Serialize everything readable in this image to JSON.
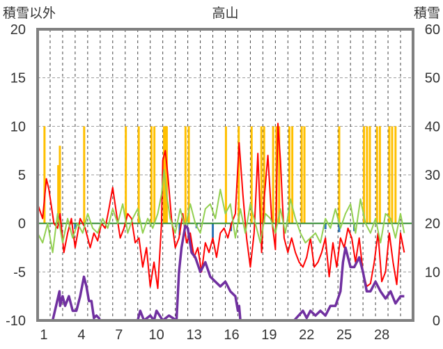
{
  "chart_data": {
    "type": "line",
    "title": "高山",
    "ylabel": "積雪以外",
    "y2label": "積雪",
    "ylim": [
      -10,
      20
    ],
    "y2lim": [
      0,
      60
    ],
    "yticks": [
      -10,
      -5,
      0,
      5,
      10,
      15,
      20
    ],
    "y2ticks": [
      0,
      10,
      20,
      30,
      40,
      50,
      60
    ],
    "xlim": [
      0,
      30
    ],
    "xticks": [
      1,
      4,
      7,
      10,
      13,
      16,
      19,
      22,
      25,
      28
    ],
    "grid": true,
    "colors": {
      "precip": "#ffc000",
      "negative_bar": "#2e75b6",
      "temperature": "#ff0000",
      "wind": "#92d050",
      "snow": "#7030a0",
      "grid": "#999999",
      "frame": "#808080"
    },
    "series": [
      {
        "axis": "left",
        "kind": "bar",
        "x": [
          0.55,
          1.65,
          1.78,
          3.72,
          7.05,
          8.08,
          9.1,
          9.33,
          10.1,
          10.2,
          10.32,
          11.82,
          12.08,
          15.05,
          16.07,
          17.1,
          17.88,
          18.1,
          18.82,
          19.08,
          19.3,
          20.12,
          20.35,
          21.1,
          21.32,
          24.1,
          26.08,
          26.32,
          26.55,
          27.12,
          27.35,
          28.1,
          28.33,
          28.6
        ],
        "values": [
          10,
          6,
          8,
          10,
          10,
          10,
          10,
          10,
          10,
          10,
          10,
          10,
          10,
          10,
          10,
          10,
          10,
          10,
          10,
          10,
          10,
          10,
          10,
          10,
          10,
          10,
          10,
          10,
          10,
          10,
          10,
          10,
          10,
          10
        ]
      },
      {
        "axis": "left",
        "kind": "bar-negative",
        "x": [
          3.0,
          11.35,
          12.7,
          14.0,
          15.45,
          23.0,
          24.1,
          25.3
        ],
        "values": [
          -0.6,
          -1.2,
          -0.5,
          -1.5,
          -0.8,
          -0.6,
          -0.9,
          -0.8
        ]
      },
      {
        "axis": "left",
        "kind": "line",
        "x": [
          0,
          0.4,
          0.7,
          0.9,
          1.3,
          1.6,
          1.8,
          2.1,
          2.4,
          2.7,
          3.0,
          3.4,
          3.8,
          4.2,
          4.5,
          4.8,
          5.1,
          5.4,
          5.7,
          6.0,
          6.3,
          6.6,
          6.9,
          7.2,
          7.5,
          7.8,
          8.1,
          8.4,
          8.7,
          9.0,
          9.3,
          9.6,
          9.9,
          10.0,
          10.2,
          10.4,
          10.7,
          11.0,
          11.3,
          11.6,
          11.9,
          12.2,
          12.5,
          12.8,
          13.1,
          13.4,
          13.7,
          14.0,
          14.3,
          14.6,
          14.9,
          15.2,
          15.5,
          15.8,
          16.1,
          16.4,
          16.7,
          17.0,
          17.3,
          17.6,
          17.9,
          18.1,
          18.4,
          18.7,
          19.0,
          19.2,
          19.4,
          19.7,
          20.0,
          20.3,
          20.6,
          20.9,
          21.2,
          21.5,
          21.8,
          22.1,
          22.4,
          22.7,
          23.0,
          23.3,
          23.6,
          23.9,
          24.2,
          24.5,
          24.8,
          25.1,
          25.4,
          25.7,
          26.0,
          26.3,
          26.6,
          26.9,
          27.2,
          27.5,
          27.8,
          28.1,
          28.4,
          28.7,
          29.0,
          29.3
        ],
        "values": [
          2,
          0.5,
          4.6,
          3.5,
          0,
          -0.5,
          1,
          -3,
          -1,
          0.5,
          -2.5,
          0.5,
          -0.5,
          -2.5,
          -1,
          -1.8,
          0,
          -0.5,
          1.5,
          3.7,
          1,
          -1.5,
          -0.5,
          1,
          0.5,
          -2,
          -1.5,
          -4.5,
          -2.5,
          -6.5,
          -4,
          -6.7,
          0,
          6.5,
          7.5,
          5,
          0.5,
          -2.5,
          -1.5,
          1,
          -2,
          -1,
          -3.5,
          -2.5,
          -5,
          -2,
          -3,
          -1.5,
          -3.5,
          -1,
          -0.5,
          -1.5,
          0,
          1,
          8.3,
          3,
          -1.5,
          -4.5,
          -1,
          7.2,
          -3,
          2.5,
          7,
          0.5,
          -2.7,
          10.3,
          6.5,
          -1.5,
          -3,
          -1.5,
          -3,
          -4,
          -4.5,
          -3.5,
          -1.5,
          -4.5,
          -4,
          -3,
          -1.5,
          -5.5,
          -2,
          -4.5,
          -1.5,
          -2.5,
          -0.5,
          -1.5,
          -4,
          -1.5,
          -5,
          -6.5,
          -6.2,
          -4,
          -1,
          -6,
          -5,
          -1,
          -4,
          -6.3,
          -1,
          -3
        ]
      },
      {
        "axis": "left",
        "kind": "line",
        "x": [
          0,
          0.4,
          0.8,
          1.2,
          1.6,
          2.0,
          2.4,
          2.8,
          3.2,
          3.6,
          4.0,
          4.4,
          4.8,
          5.2,
          5.6,
          6.0,
          6.4,
          6.8,
          7.2,
          7.6,
          8.0,
          8.4,
          8.8,
          9.2,
          9.6,
          9.9,
          10.1,
          10.3,
          10.6,
          11.0,
          11.4,
          11.8,
          12.2,
          12.6,
          13.0,
          13.4,
          13.8,
          14.2,
          14.6,
          15.0,
          15.4,
          15.8,
          16.2,
          16.6,
          17.0,
          17.4,
          17.8,
          18.2,
          18.6,
          19.0,
          19.4,
          19.8,
          20.2,
          20.6,
          21.0,
          21.4,
          21.8,
          22.2,
          22.6,
          23.0,
          23.4,
          23.8,
          24.2,
          24.6,
          25.0,
          25.4,
          25.8,
          26.2,
          26.6,
          27.0,
          27.4,
          27.8,
          28.2,
          28.6,
          29.0,
          29.3
        ],
        "values": [
          -1,
          -2,
          0,
          -3,
          1,
          -2,
          0.5,
          -1.5,
          0,
          -1,
          1,
          -0.5,
          -1,
          0.5,
          -0.5,
          1.5,
          0,
          2,
          -1,
          0.5,
          1.5,
          -1,
          0.5,
          -0.5,
          1,
          3,
          5.5,
          3,
          0.5,
          -1,
          1.5,
          -0.5,
          2,
          0,
          -1,
          1.5,
          2,
          0.5,
          3.5,
          1,
          2,
          -1.5,
          1.5,
          -1,
          2,
          0,
          -2,
          1,
          0.5,
          -1,
          1.5,
          -1,
          2.5,
          0.5,
          -1,
          -2,
          -1.5,
          -1,
          -2,
          0.5,
          -0.5,
          1.5,
          -0.5,
          1,
          2,
          -1,
          2.5,
          0,
          -1,
          0.5,
          -2,
          1,
          0.5,
          -1.5,
          1,
          -1
        ]
      },
      {
        "axis": "right",
        "kind": "line",
        "x": [
          0,
          1.2,
          1.75,
          1.8,
          2.0,
          2.2,
          2.5,
          2.8,
          3.1,
          3.4,
          3.7,
          3.9,
          4.1,
          4.3,
          4.5,
          4.7,
          4.9,
          5.0,
          8.0,
          8.2,
          8.5,
          9.0,
          9.3,
          9.5,
          10.0,
          10.5,
          11.1,
          11.3,
          11.5,
          11.8,
          12.0,
          12.3,
          12.6,
          13.0,
          13.4,
          13.8,
          14.2,
          14.6,
          15.0,
          15.4,
          15.8,
          16.0,
          16.1,
          16.2,
          20.5,
          21.2,
          21.5,
          21.8,
          22.2,
          22.6,
          23.0,
          23.4,
          23.8,
          24.2,
          24.4,
          24.6,
          24.8,
          25.0,
          25.3,
          25.7,
          26.0,
          26.3,
          26.6,
          27.0,
          27.4,
          27.8,
          28.2,
          28.6,
          29.0,
          29.3
        ],
        "values": [
          0,
          0,
          6,
          3,
          5,
          3,
          5,
          2,
          2,
          5,
          9,
          7,
          4,
          4,
          0.5,
          1,
          0.5,
          0,
          0,
          2,
          0,
          1,
          0,
          2,
          0,
          1,
          0,
          10,
          15,
          19.5,
          19,
          14,
          13,
          10,
          12,
          9,
          8,
          7,
          8,
          6,
          5,
          2,
          3,
          0,
          0,
          2,
          0.5,
          2,
          1,
          2,
          1,
          3,
          3,
          6,
          12,
          15,
          13,
          11,
          11,
          13,
          10,
          6,
          6,
          8,
          6,
          4.5,
          6,
          3.5,
          5,
          5
        ]
      }
    ]
  }
}
